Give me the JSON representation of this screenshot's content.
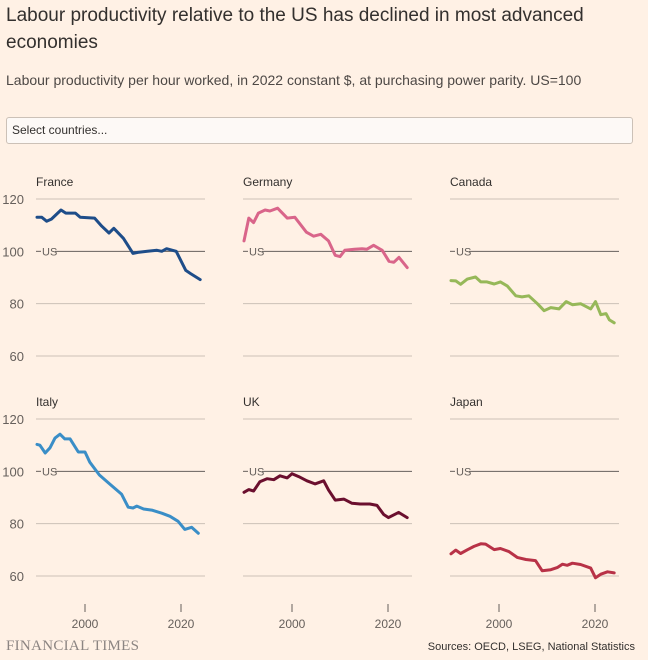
{
  "header": {
    "title": "Labour productivity relative to the US has declined in most advanced economies",
    "subtitle": "Labour productivity per hour worked, in 2022 constant $, at purchasing power parity. US=100"
  },
  "country_select": {
    "placeholder": "Select countries..."
  },
  "footer": {
    "logo": "FINANCIAL TIMES",
    "sources": "Sources: OECD, LSEG, National Statistics"
  },
  "chart_data": {
    "type": "line",
    "title": "Labour productivity relative to the US has declined in most advanced economies",
    "subtitle": "Labour productivity per hour worked, in 2022 constant $, at purchasing power parity. US=100",
    "ylim": [
      60,
      120
    ],
    "yticks": [
      60,
      80,
      100,
      120
    ],
    "xlim": [
      1990,
      2024
    ],
    "xticks": [
      2000,
      2020
    ],
    "reference_line": {
      "value": 100,
      "label": "US"
    },
    "grid": true,
    "panels": [
      {
        "name": "France",
        "color": "#1E4D89",
        "x": [
          1990,
          1991,
          1992,
          1993,
          1995,
          1996,
          1998,
          1999,
          2002,
          2003.5,
          2005,
          2006,
          2008,
          2010,
          2011,
          2013,
          2015,
          2016,
          2017,
          2019,
          2021,
          2022,
          2024
        ],
        "y": [
          113,
          113,
          111.5,
          112.3,
          115.8,
          114.6,
          114.6,
          113,
          112.7,
          109.6,
          107,
          108.8,
          105,
          99.2,
          99.6,
          100,
          100.4,
          100,
          101,
          100,
          92.7,
          91.5,
          89.2
        ]
      },
      {
        "name": "Germany",
        "color": "#D9658A",
        "x": [
          1990,
          1991,
          1992,
          1993,
          1994.4,
          1995.4,
          1997,
          1999,
          2000.6,
          2003,
          2004.5,
          2006,
          2007.6,
          2009,
          2010,
          2011,
          2013,
          2014.6,
          2015.6,
          2017,
          2018.8,
          2020.2,
          2021.2,
          2022.3,
          2024
        ],
        "y": [
          104,
          112.7,
          111,
          114.6,
          115.8,
          115.4,
          116.5,
          112.7,
          113,
          107.3,
          105.8,
          106.5,
          104,
          98.5,
          98,
          100.4,
          100.8,
          101,
          100.8,
          102.3,
          100.4,
          96.2,
          95.8,
          97.7,
          93.8
        ]
      },
      {
        "name": "Canada",
        "color": "#96B859",
        "x": [
          1990,
          1991,
          1992,
          1993.4,
          1995.1,
          1996.2,
          1997.5,
          1999,
          2000.3,
          2001.7,
          2003.5,
          2004.8,
          2006.2,
          2008,
          2009.4,
          2010.8,
          2012.5,
          2014,
          2015.3,
          2017,
          2019.1,
          2020.1,
          2021.2,
          2022.3,
          2023,
          2024
        ],
        "y": [
          88.8,
          88.7,
          87.4,
          89.4,
          90.2,
          88.3,
          88.3,
          87.5,
          88.3,
          86.8,
          83,
          82.6,
          83,
          80,
          77.3,
          78.5,
          78,
          80.8,
          79.6,
          80,
          78,
          80.8,
          75.8,
          76.2,
          73.8,
          72.7
        ]
      },
      {
        "name": "Italy",
        "color": "#3A8EC7",
        "x": [
          1990,
          1990.6,
          1991.7,
          1992.7,
          1993.75,
          1994.8,
          1995.8,
          1996.9,
          1998.6,
          2000,
          2001,
          2003,
          2005.2,
          2007.6,
          2009,
          2010,
          2010.8,
          2012.2,
          2013.9,
          2016,
          2017.7,
          2019.4,
          2020.8,
          2022.2,
          2023.6
        ],
        "y": [
          110.3,
          110,
          107,
          109,
          112.7,
          114.2,
          112.4,
          112.4,
          107.4,
          107.4,
          103.5,
          98.6,
          95.1,
          91.3,
          86.3,
          86,
          86.7,
          85.6,
          85.2,
          84,
          82.8,
          80.9,
          77.8,
          78.6,
          76.3
        ]
      },
      {
        "name": "UK",
        "color": "#6B0F2E",
        "x": [
          1990,
          1991,
          1992,
          1993.3,
          1994.8,
          1996.2,
          1997.5,
          1999,
          2000,
          2001.4,
          2003.1,
          2004.8,
          2006.6,
          2007.6,
          2009,
          2010.8,
          2012.5,
          2014.2,
          2016.2,
          2017.7,
          2019.1,
          2020.1,
          2022.2,
          2024
        ],
        "y": [
          92,
          93,
          92.5,
          96,
          97.2,
          96.8,
          98.3,
          97.5,
          99.1,
          98,
          96.4,
          95.2,
          96.4,
          92.9,
          89,
          89.4,
          87.8,
          87.5,
          87.5,
          87,
          83.5,
          82.3,
          84.3,
          82.3
        ]
      },
      {
        "name": "Japan",
        "color": "#B83247",
        "x": [
          1990,
          1991,
          1992,
          1993.4,
          1994.8,
          1996.2,
          1997.2,
          1999,
          2000.3,
          2002,
          2003.8,
          2005.6,
          2007.6,
          2009,
          2010.8,
          2012.2,
          2013.2,
          2014.2,
          2015.3,
          2017,
          2019.1,
          2020.1,
          2021.2,
          2022.6,
          2024
        ],
        "y": [
          68.5,
          69.9,
          68.6,
          70,
          71.3,
          72.3,
          72.2,
          70.1,
          70.5,
          69.4,
          67.1,
          66.3,
          65.9,
          62,
          62.4,
          63.3,
          64.5,
          64.1,
          64.9,
          64.4,
          63,
          59.3,
          60.7,
          61.6,
          61.2
        ]
      }
    ]
  }
}
